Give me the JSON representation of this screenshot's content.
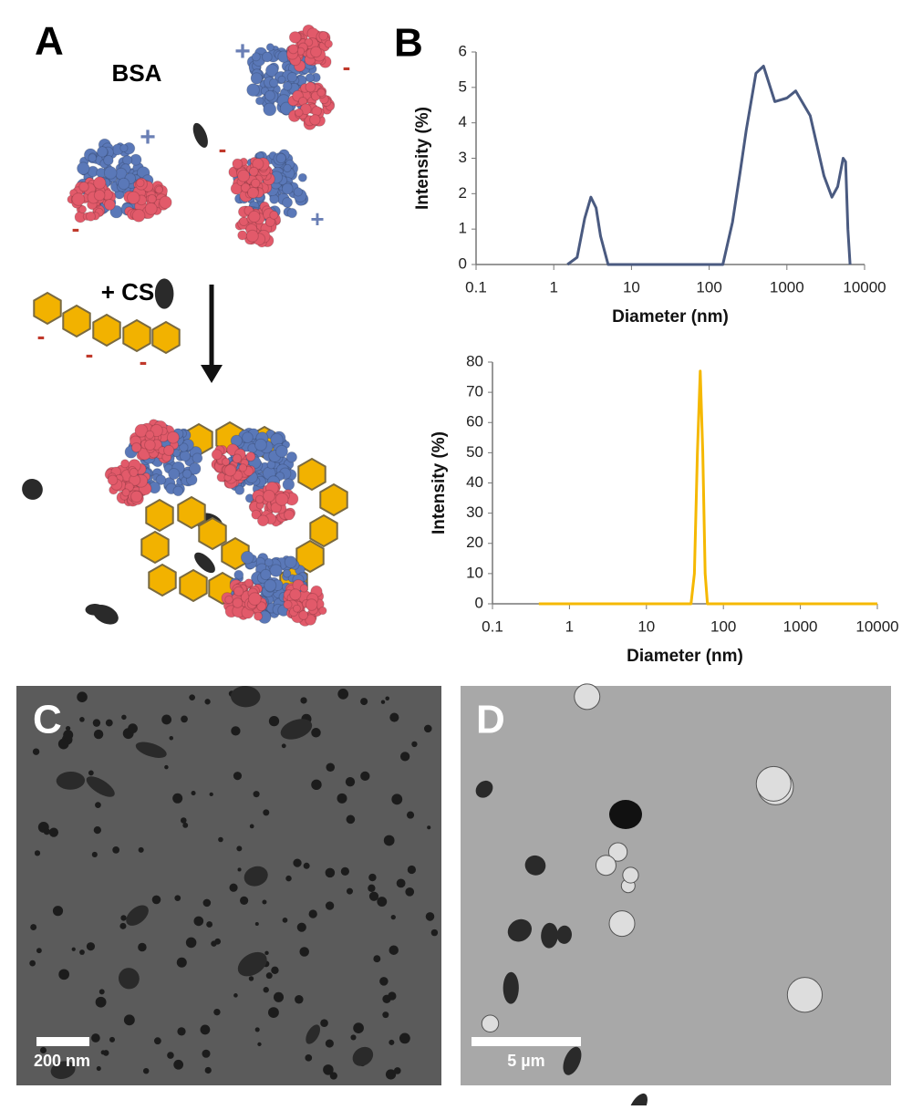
{
  "panels": {
    "a": {
      "label": "A",
      "protein": "BSA",
      "additive": "+ CS",
      "signs": [
        "+",
        "-",
        "+",
        "-",
        "-",
        "+",
        "-",
        "-",
        "-"
      ]
    },
    "b": {
      "label": "B"
    },
    "c": {
      "label": "C",
      "scale_bar": "200 nm"
    },
    "d": {
      "label": "D",
      "scale_bar": "5 µm"
    }
  },
  "chart_data": [
    {
      "type": "line",
      "xlabel": "Diameter (nm)",
      "ylabel": "Intensity (%)",
      "xscale": "log",
      "x": [
        1.5,
        2,
        2.5,
        3,
        3.5,
        4,
        5,
        150,
        200,
        250,
        300,
        400,
        500,
        700,
        1000,
        1300,
        2000,
        3000,
        3800,
        4500,
        5300,
        5700,
        6100,
        6500
      ],
      "series": [
        {
          "color": "#4a5a80",
          "values": [
            0,
            0.2,
            1.3,
            1.9,
            1.6,
            0.8,
            0,
            0,
            1.2,
            2.6,
            3.8,
            5.4,
            5.6,
            4.6,
            4.7,
            4.9,
            4.2,
            2.5,
            1.9,
            2.2,
            3.0,
            2.9,
            1.0,
            0
          ]
        }
      ],
      "xlim": [
        0.1,
        10000
      ],
      "xticks": [
        0.1,
        1,
        10,
        100,
        1000,
        10000
      ],
      "ylim": [
        0,
        6
      ],
      "yticks": [
        0,
        1,
        2,
        3,
        4,
        5,
        6
      ]
    },
    {
      "type": "line",
      "xlabel": "Diameter (nm)",
      "ylabel": "Intensity (%)",
      "xscale": "log",
      "x": [
        0.4,
        38,
        42,
        46,
        50,
        54,
        58,
        62,
        10000
      ],
      "series": [
        {
          "color": "#f5b800",
          "values": [
            0,
            0,
            10,
            50,
            77,
            50,
            10,
            0,
            0
          ]
        }
      ],
      "xlim": [
        0.1,
        10000
      ],
      "xticks": [
        0.1,
        1,
        10,
        100,
        1000,
        10000
      ],
      "ylim": [
        0,
        80
      ],
      "yticks": [
        0,
        10,
        20,
        30,
        40,
        50,
        60,
        70,
        80
      ]
    }
  ]
}
